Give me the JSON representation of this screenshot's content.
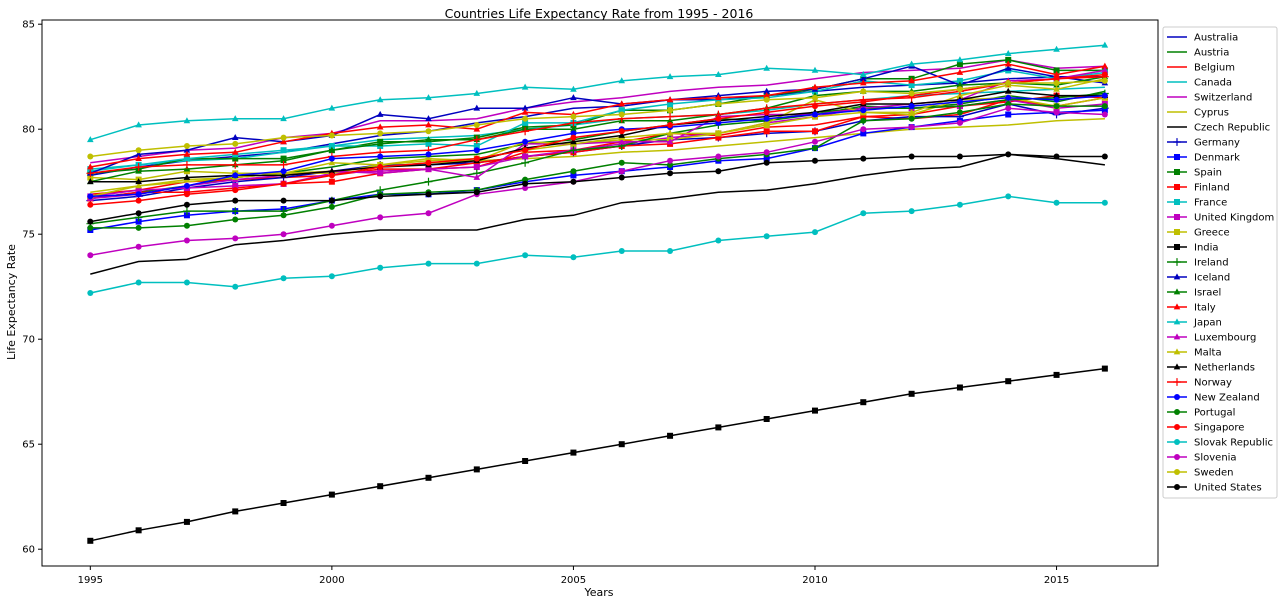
{
  "chart_data": {
    "type": "line",
    "title": "Countries Life Expectancy Rate from 1995 - 2016",
    "xlabel": "Years",
    "ylabel": "Life Expectancy Rate",
    "xlim": [
      1994,
      2017.1
    ],
    "ylim": [
      59.2,
      85.2
    ],
    "xticks": [
      1995,
      2000,
      2005,
      2010,
      2015
    ],
    "yticks": [
      60,
      65,
      70,
      75,
      80,
      85
    ],
    "grid": false,
    "legend_position": "outside-right",
    "x": [
      1995,
      1996,
      1997,
      1998,
      1999,
      2000,
      2001,
      2002,
      2003,
      2004,
      2005,
      2006,
      2007,
      2008,
      2009,
      2010,
      2011,
      2012,
      2013,
      2014,
      2015,
      2016
    ],
    "series": [
      {
        "name": "Australia",
        "color": "#0000bf",
        "marker": "none",
        "values": [
          77.8,
          78.2,
          78.5,
          78.7,
          78.9,
          79.3,
          79.7,
          79.9,
          80.3,
          80.6,
          81.0,
          81.1,
          81.4,
          81.4,
          81.6,
          81.8,
          82.0,
          82.1,
          82.2,
          82.4,
          82.5,
          82.5
        ]
      },
      {
        "name": "Austria",
        "color": "#008000",
        "marker": "none",
        "values": [
          76.7,
          77.0,
          77.3,
          77.7,
          77.9,
          78.2,
          78.6,
          78.7,
          78.8,
          79.3,
          79.5,
          79.9,
          80.2,
          80.5,
          80.4,
          80.7,
          81.1,
          81.0,
          81.2,
          81.6,
          81.3,
          81.8
        ]
      },
      {
        "name": "Belgium",
        "color": "#ff0000",
        "marker": "none",
        "values": [
          76.9,
          77.1,
          77.5,
          77.6,
          77.7,
          77.8,
          78.1,
          78.1,
          78.2,
          78.9,
          79.0,
          79.4,
          79.8,
          79.7,
          80.1,
          80.2,
          80.6,
          80.5,
          80.7,
          81.4,
          81.1,
          81.5
        ]
      },
      {
        "name": "Canada",
        "color": "#00bfbf",
        "marker": "none",
        "values": [
          78.0,
          78.3,
          78.5,
          78.6,
          78.9,
          79.2,
          79.5,
          79.6,
          79.7,
          80.0,
          80.2,
          80.5,
          80.6,
          80.7,
          80.9,
          81.2,
          81.4,
          81.6,
          81.7,
          81.8,
          81.9,
          82.0
        ]
      },
      {
        "name": "Switzerland",
        "color": "#bf00bf",
        "marker": "none",
        "values": [
          78.4,
          78.7,
          79.0,
          79.1,
          79.6,
          79.8,
          80.4,
          80.4,
          80.5,
          81.0,
          81.3,
          81.5,
          81.8,
          82.0,
          82.1,
          82.4,
          82.7,
          82.8,
          82.9,
          83.3,
          82.9,
          83.0
        ]
      },
      {
        "name": "Cyprus",
        "color": "#bfbf00",
        "marker": "none",
        "values": [
          77.0,
          77.3,
          77.5,
          77.7,
          77.9,
          78.0,
          78.2,
          78.4,
          78.5,
          78.6,
          78.7,
          78.9,
          79.0,
          79.2,
          79.4,
          79.6,
          79.8,
          80.0,
          80.1,
          80.2,
          80.4,
          80.5
        ]
      },
      {
        "name": "Czech Republic",
        "color": "#000000",
        "marker": "none",
        "values": [
          73.1,
          73.7,
          73.8,
          74.5,
          74.7,
          75.0,
          75.2,
          75.2,
          75.2,
          75.7,
          75.9,
          76.5,
          76.7,
          77.0,
          77.1,
          77.4,
          77.8,
          78.1,
          78.2,
          78.8,
          78.6,
          78.3
        ]
      },
      {
        "name": "Germany",
        "color": "#0000bf",
        "marker": "plus",
        "values": [
          76.6,
          76.8,
          77.2,
          77.5,
          77.7,
          78.0,
          78.3,
          78.3,
          78.4,
          78.7,
          78.9,
          79.2,
          79.5,
          79.6,
          79.8,
          79.9,
          80.4,
          80.6,
          80.6,
          81.2,
          80.7,
          81.0
        ]
      },
      {
        "name": "Denmark",
        "color": "#0000ff",
        "marker": "square",
        "values": [
          75.2,
          75.6,
          75.9,
          76.1,
          76.2,
          76.6,
          76.9,
          76.9,
          77.1,
          77.5,
          77.8,
          78.0,
          78.2,
          78.5,
          78.6,
          79.1,
          79.8,
          80.1,
          80.4,
          80.7,
          80.8,
          80.9
        ]
      },
      {
        "name": "Spain",
        "color": "#008000",
        "marker": "square",
        "values": [
          77.9,
          78.1,
          78.6,
          78.6,
          78.6,
          79.0,
          79.4,
          79.4,
          79.6,
          80.1,
          80.2,
          80.9,
          80.9,
          81.2,
          81.6,
          81.9,
          82.4,
          82.4,
          83.1,
          83.3,
          82.8,
          82.8
        ]
      },
      {
        "name": "Finland",
        "color": "#ff0000",
        "marker": "square",
        "values": [
          76.7,
          77.0,
          77.0,
          77.2,
          77.4,
          77.5,
          77.9,
          78.1,
          78.4,
          78.7,
          78.9,
          79.2,
          79.3,
          79.6,
          79.9,
          79.9,
          80.6,
          80.7,
          81.1,
          81.3,
          81.6,
          81.5
        ]
      },
      {
        "name": "France",
        "color": "#00bfbf",
        "marker": "square",
        "values": [
          78.1,
          78.3,
          78.6,
          78.8,
          79.0,
          79.2,
          79.2,
          79.3,
          79.2,
          80.3,
          80.3,
          80.9,
          81.2,
          81.4,
          81.5,
          81.8,
          82.3,
          82.1,
          82.3,
          82.8,
          82.4,
          82.7
        ]
      },
      {
        "name": "United Kingdom",
        "color": "#bf00bf",
        "marker": "square",
        "values": [
          76.8,
          77.1,
          77.2,
          77.3,
          77.4,
          77.9,
          78.0,
          78.1,
          78.2,
          78.7,
          79.0,
          79.3,
          79.6,
          79.8,
          80.3,
          80.6,
          81.0,
          81.0,
          81.1,
          81.4,
          81.0,
          81.2
        ]
      },
      {
        "name": "Greece",
        "color": "#bfbf00",
        "marker": "square",
        "values": [
          77.7,
          77.6,
          78.0,
          77.9,
          77.9,
          77.9,
          78.3,
          78.5,
          78.6,
          79.0,
          79.3,
          79.5,
          79.5,
          79.8,
          80.2,
          80.6,
          80.8,
          80.7,
          81.4,
          81.5,
          81.1,
          81.5
        ]
      },
      {
        "name": "India",
        "color": "#000000",
        "marker": "square",
        "values": [
          60.4,
          60.9,
          61.3,
          61.8,
          62.2,
          62.6,
          63.0,
          63.4,
          63.8,
          64.2,
          64.6,
          65.0,
          65.4,
          65.8,
          66.2,
          66.6,
          67.0,
          67.4,
          67.7,
          68.0,
          68.3,
          68.6
        ]
      },
      {
        "name": "Ireland",
        "color": "#008000",
        "marker": "plus",
        "values": [
          75.5,
          75.8,
          76.1,
          76.1,
          76.1,
          76.6,
          77.1,
          77.5,
          77.9,
          78.4,
          79.0,
          79.2,
          79.8,
          80.2,
          80.4,
          80.8,
          81.0,
          81.0,
          81.1,
          81.4,
          81.5,
          81.7
        ]
      },
      {
        "name": "Iceland",
        "color": "#0000bf",
        "marker": "triangle",
        "values": [
          77.9,
          78.8,
          79.0,
          79.6,
          79.4,
          79.7,
          80.7,
          80.5,
          81.0,
          81.0,
          81.5,
          81.2,
          81.4,
          81.6,
          81.8,
          81.9,
          82.4,
          83.0,
          82.1,
          82.9,
          82.5,
          82.2
        ]
      },
      {
        "name": "Israel",
        "color": "#008000",
        "marker": "triangle",
        "values": [
          77.5,
          78.0,
          78.1,
          78.3,
          78.5,
          79.0,
          79.3,
          79.5,
          79.5,
          80.0,
          80.0,
          80.4,
          80.4,
          80.7,
          81.0,
          81.6,
          81.8,
          81.8,
          82.1,
          82.2,
          82.1,
          82.5
        ]
      },
      {
        "name": "Italy",
        "color": "#ff0000",
        "marker": "triangle",
        "values": [
          78.2,
          78.6,
          78.8,
          78.9,
          79.4,
          79.8,
          80.1,
          80.2,
          80.0,
          80.8,
          80.7,
          81.2,
          81.4,
          81.5,
          81.6,
          82.0,
          82.2,
          82.3,
          82.7,
          83.1,
          82.6,
          83.0
        ]
      },
      {
        "name": "Japan",
        "color": "#00bfbf",
        "marker": "triangle",
        "values": [
          79.5,
          80.2,
          80.4,
          80.5,
          80.5,
          81.0,
          81.4,
          81.5,
          81.7,
          82.0,
          81.9,
          82.3,
          82.5,
          82.6,
          82.9,
          82.8,
          82.6,
          83.1,
          83.3,
          83.6,
          83.8,
          84.0
        ]
      },
      {
        "name": "Luxembourg",
        "color": "#bf00bf",
        "marker": "triangle",
        "values": [
          76.7,
          76.9,
          77.3,
          77.6,
          77.8,
          78.0,
          77.9,
          78.1,
          77.7,
          79.3,
          79.3,
          79.4,
          79.4,
          80.6,
          80.7,
          80.7,
          81.0,
          81.2,
          81.4,
          82.3,
          82.4,
          82.8
        ]
      },
      {
        "name": "Malta",
        "color": "#bfbf00",
        "marker": "triangle",
        "values": [
          76.8,
          77.3,
          77.6,
          77.7,
          77.9,
          78.4,
          78.3,
          78.6,
          78.5,
          79.4,
          79.3,
          79.6,
          79.8,
          79.8,
          80.3,
          81.4,
          80.8,
          80.8,
          81.6,
          82.1,
          81.9,
          82.4
        ]
      },
      {
        "name": "Netherlands",
        "color": "#000000",
        "marker": "triangle",
        "values": [
          77.5,
          77.5,
          77.7,
          77.8,
          77.8,
          78.0,
          78.2,
          78.3,
          78.5,
          79.1,
          79.4,
          79.7,
          80.2,
          80.4,
          80.6,
          80.8,
          81.2,
          81.2,
          81.4,
          81.8,
          81.6,
          81.6
        ]
      },
      {
        "name": "Norway",
        "color": "#ff0000",
        "marker": "plus",
        "values": [
          77.9,
          78.2,
          78.3,
          78.3,
          78.3,
          78.7,
          78.9,
          79.0,
          79.5,
          79.9,
          80.3,
          80.5,
          80.6,
          80.7,
          81.0,
          81.2,
          81.4,
          81.5,
          81.8,
          82.2,
          82.4,
          82.5
        ]
      },
      {
        "name": "New Zealand",
        "color": "#0000ff",
        "marker": "circle",
        "values": [
          76.8,
          76.9,
          77.3,
          77.8,
          78.0,
          78.6,
          78.7,
          78.8,
          79.0,
          79.4,
          79.8,
          80.0,
          80.1,
          80.3,
          80.5,
          80.7,
          80.9,
          81.1,
          81.3,
          81.5,
          81.4,
          81.6
        ]
      },
      {
        "name": "Portugal",
        "color": "#008000",
        "marker": "circle",
        "values": [
          75.3,
          75.3,
          75.4,
          75.7,
          75.9,
          76.3,
          76.9,
          77.0,
          77.1,
          77.6,
          78.0,
          78.4,
          78.3,
          78.6,
          78.8,
          79.1,
          80.4,
          80.5,
          80.8,
          81.2,
          81.1,
          81.1
        ]
      },
      {
        "name": "Singapore",
        "color": "#ff0000",
        "marker": "circle",
        "values": [
          76.4,
          76.6,
          76.9,
          77.1,
          77.4,
          77.8,
          78.2,
          78.4,
          78.6,
          79.0,
          79.6,
          79.9,
          80.2,
          80.5,
          80.8,
          81.1,
          81.3,
          81.6,
          81.9,
          82.2,
          82.4,
          82.6
        ]
      },
      {
        "name": "Slovak Republic",
        "color": "#00bfbf",
        "marker": "circle",
        "values": [
          72.2,
          72.7,
          72.7,
          72.5,
          72.9,
          73.0,
          73.4,
          73.6,
          73.6,
          74.0,
          73.9,
          74.2,
          74.2,
          74.7,
          74.9,
          75.1,
          76.0,
          76.1,
          76.4,
          76.8,
          76.5,
          76.5
        ]
      },
      {
        "name": "Slovenia",
        "color": "#bf00bf",
        "marker": "circle",
        "values": [
          74.0,
          74.4,
          74.7,
          74.8,
          75.0,
          75.4,
          75.8,
          76.0,
          76.9,
          77.2,
          77.5,
          78.0,
          78.5,
          78.7,
          78.9,
          79.4,
          80.0,
          80.1,
          80.3,
          81.0,
          80.8,
          80.7
        ]
      },
      {
        "name": "Sweden",
        "color": "#bfbf00",
        "marker": "circle",
        "values": [
          78.7,
          79.0,
          79.2,
          79.3,
          79.6,
          79.7,
          79.8,
          79.9,
          80.2,
          80.5,
          80.6,
          80.7,
          80.9,
          81.2,
          81.4,
          81.5,
          81.8,
          81.7,
          81.9,
          82.2,
          82.2,
          82.3
        ]
      },
      {
        "name": "United States",
        "color": "#000000",
        "marker": "circle",
        "values": [
          75.6,
          76.0,
          76.4,
          76.6,
          76.6,
          76.6,
          76.8,
          76.9,
          77.0,
          77.4,
          77.5,
          77.7,
          77.9,
          78.0,
          78.4,
          78.5,
          78.6,
          78.7,
          78.7,
          78.8,
          78.7,
          78.7
        ]
      }
    ]
  }
}
